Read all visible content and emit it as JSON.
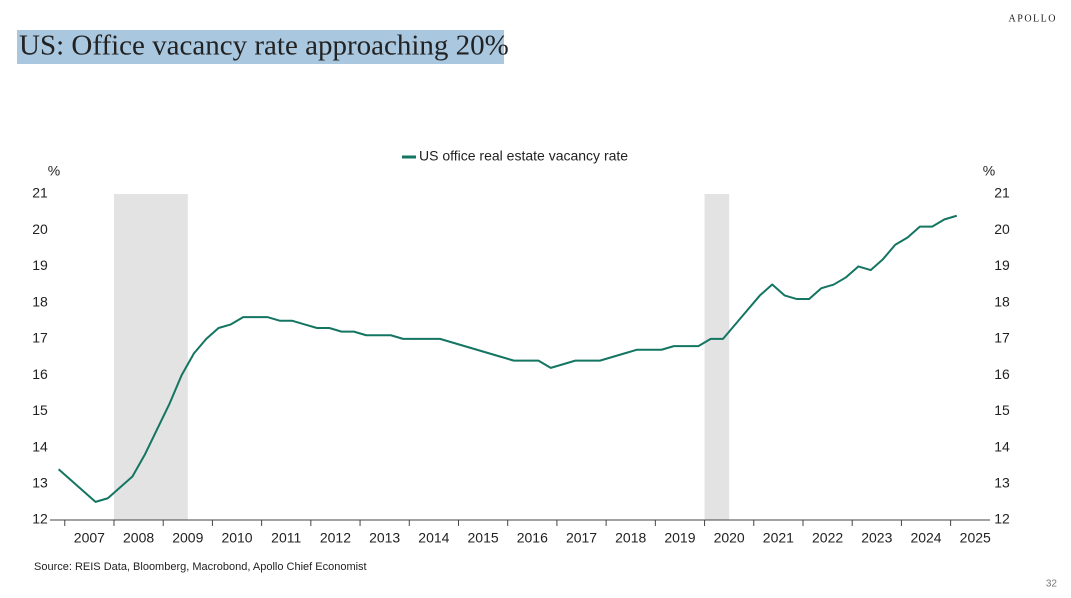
{
  "brand": "APOLLO",
  "page_number": "32",
  "source": "Source: REIS Data, Bloomberg, Macrobond, Apollo Chief Economist",
  "chart_data": {
    "type": "line",
    "title": "US: Office vacancy rate approaching 20%",
    "y_unit": "%",
    "y2_unit": "%",
    "x": [
      2006.875,
      2007.125,
      2007.375,
      2007.625,
      2007.875,
      2008.125,
      2008.375,
      2008.625,
      2008.875,
      2009.125,
      2009.375,
      2009.625,
      2009.875,
      2010.125,
      2010.375,
      2010.625,
      2010.875,
      2011.125,
      2011.375,
      2011.625,
      2011.875,
      2012.125,
      2012.375,
      2012.625,
      2012.875,
      2013.125,
      2013.375,
      2013.625,
      2013.875,
      2014.125,
      2014.375,
      2014.625,
      2014.875,
      2015.125,
      2015.375,
      2015.625,
      2015.875,
      2016.125,
      2016.375,
      2016.625,
      2016.875,
      2017.125,
      2017.375,
      2017.625,
      2017.875,
      2018.125,
      2018.375,
      2018.625,
      2018.875,
      2019.125,
      2019.375,
      2019.625,
      2019.875,
      2020.125,
      2020.375,
      2020.625,
      2020.875,
      2021.125,
      2021.375,
      2021.625,
      2021.875,
      2022.125,
      2022.375,
      2022.625,
      2022.875,
      2023.125,
      2023.375,
      2023.625,
      2023.875,
      2024.125,
      2024.375,
      2024.625,
      2024.875,
      2025.125
    ],
    "series": [
      {
        "name": "US office real estate vacancy rate",
        "color": "#137562",
        "values": [
          13.4,
          13.1,
          12.8,
          12.5,
          12.6,
          12.9,
          13.2,
          13.8,
          14.5,
          15.2,
          16.0,
          16.6,
          17.0,
          17.3,
          17.4,
          17.6,
          17.6,
          17.6,
          17.5,
          17.5,
          17.4,
          17.3,
          17.3,
          17.2,
          17.2,
          17.1,
          17.1,
          17.1,
          17.0,
          17.0,
          17.0,
          17.0,
          16.9,
          16.8,
          16.7,
          16.6,
          16.5,
          16.4,
          16.4,
          16.4,
          16.2,
          16.3,
          16.4,
          16.4,
          16.4,
          16.5,
          16.6,
          16.7,
          16.7,
          16.7,
          16.8,
          16.8,
          16.8,
          17.0,
          17.0,
          17.4,
          17.8,
          18.2,
          18.5,
          18.2,
          18.1,
          18.1,
          18.4,
          18.5,
          18.7,
          19.0,
          18.9,
          19.2,
          19.6,
          19.8,
          20.1,
          20.1,
          20.3,
          20.4
        ]
      }
    ],
    "recessions": [
      [
        2008.0,
        2009.5
      ],
      [
        2020.0,
        2020.5
      ]
    ],
    "recession_color": "#e2e3e2",
    "xlim": [
      2006.7,
      2025.8
    ],
    "xticks": [
      2007,
      2008,
      2009,
      2010,
      2011,
      2012,
      2013,
      2014,
      2015,
      2016,
      2017,
      2018,
      2019,
      2020,
      2021,
      2022,
      2023,
      2024,
      2025
    ],
    "ylim": [
      12,
      21
    ],
    "yticks": [
      12,
      13,
      14,
      15,
      16,
      17,
      18,
      19,
      20,
      21
    ],
    "y2lim": [
      12,
      21
    ],
    "y2ticks": [
      12,
      13,
      14,
      15,
      16,
      17,
      18,
      19,
      20,
      21
    ],
    "grid": false,
    "legend": "top"
  }
}
